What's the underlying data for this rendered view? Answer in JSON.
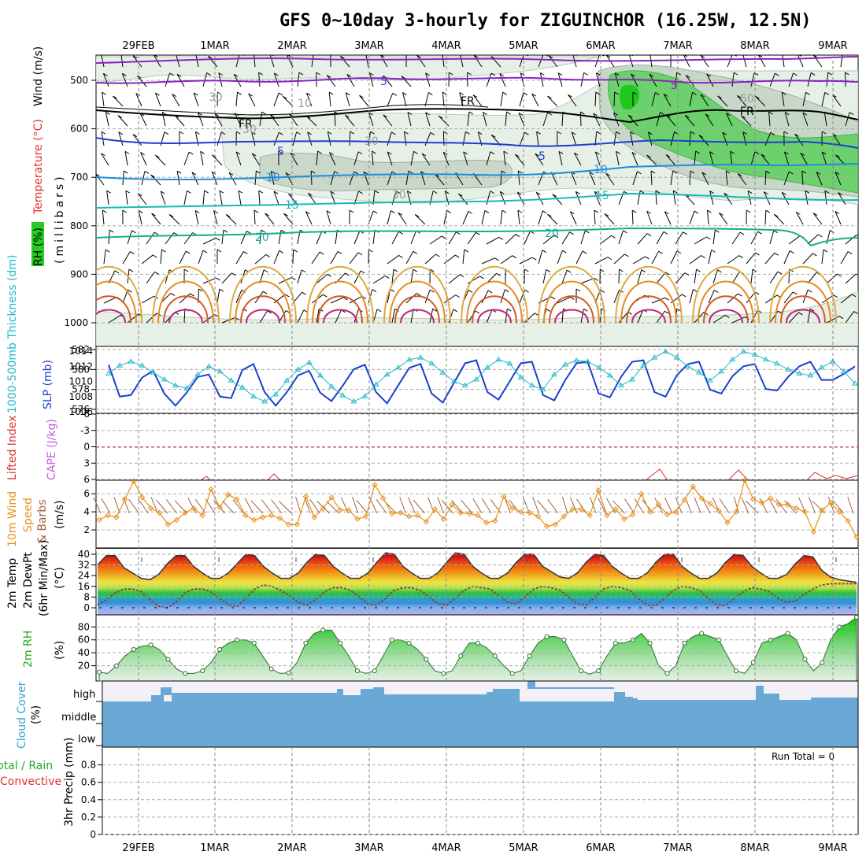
{
  "title": "GFS 0~10day 3-hourly for ZIGUINCHOR (16.25W, 12.5N)",
  "dates": [
    "29FEB",
    "1MAR",
    "2MAR",
    "3MAR",
    "4MAR",
    "5MAR",
    "6MAR",
    "7MAR",
    "8MAR",
    "9MAR"
  ],
  "colors": {
    "grid": "#aaaaaa",
    "slp": "#1a3fd0",
    "thickness": "#20b8c8",
    "wind10": "#e8901a",
    "lifted": "#e03030",
    "rh_fill": "#22cc22",
    "cloud": "#6aa8d6",
    "dewpt": "#8b4a2a"
  },
  "panels": {
    "upper": {
      "labels": {
        "wind": "Wind (m/s)",
        "temperature": "Temperature (°C)",
        "rh": "RH (%)",
        "pressure": "(millibars)"
      },
      "yticks": [
        "500",
        "600",
        "700",
        "800",
        "900",
        "1000"
      ],
      "contour_labels": [
        {
          "text": "5",
          "color": "#8a22c8"
        },
        {
          "text": "5",
          "color": "#8a22c8"
        },
        {
          "text": "FR",
          "color": "#000000"
        },
        {
          "text": "FR",
          "color": "#000000"
        },
        {
          "text": "FR",
          "color": "#000000"
        },
        {
          "text": "5",
          "color": "#1a3fd0"
        },
        {
          "text": "5",
          "color": "#1a3fd0"
        },
        {
          "text": "10",
          "color": "#1a8fe0"
        },
        {
          "text": "10",
          "color": "#1a8fe0"
        },
        {
          "text": "15",
          "color": "#18b8b8"
        },
        {
          "text": "15",
          "color": "#18b8b8"
        },
        {
          "text": "20",
          "color": "#10b090"
        },
        {
          "text": "20",
          "color": "#10b090"
        },
        {
          "text": "30",
          "color": "#999999"
        },
        {
          "text": "30",
          "color": "#999999"
        },
        {
          "text": "30",
          "color": "#999999"
        },
        {
          "text": "30",
          "color": "#999999"
        },
        {
          "text": "50",
          "color": "#999999"
        },
        {
          "text": "10",
          "color": "#999999"
        }
      ]
    },
    "slp_thickness": {
      "labels": {
        "left": "1000-500mb Thickness (dm)",
        "right": "SLP (mb)"
      },
      "yticks_left": [
        "582",
        "580",
        "578",
        "576"
      ],
      "yticks_right": [
        "1014",
        "1012",
        "1010",
        "1008",
        "1006"
      ]
    },
    "cape": {
      "labels": {
        "lifted": "Lifted Index",
        "cape": "CAPE (J/kg)"
      },
      "yticks": [
        "-6",
        "-3",
        "0",
        "3",
        "6"
      ]
    },
    "wind10": {
      "labels": {
        "a": "10m Wind",
        "b": "Speed",
        "c": "& Barbs",
        "unit": "(m/s)"
      },
      "yticks": [
        "6",
        "4",
        "2"
      ]
    },
    "temp2m": {
      "labels": {
        "a": "2m Temp",
        "b": "2m DewPt",
        "c": "(6hr Min/Max)",
        "unit": "(°C)"
      },
      "yticks": [
        "40",
        "32",
        "24",
        "16",
        "8",
        "0"
      ]
    },
    "rh2m": {
      "labels": {
        "a": "2m RH",
        "unit": "(%)"
      },
      "yticks": [
        "80",
        "60",
        "40",
        "20"
      ]
    },
    "cloud": {
      "labels": {
        "a": "Cloud Cover",
        "unit": "(%)"
      },
      "levels": [
        "high",
        "middle",
        "low"
      ]
    },
    "precip": {
      "labels": {
        "a": "Total / Rain",
        "b": "Convective",
        "c": "3hr Precip (mm)"
      },
      "yticks": [
        "0.8",
        "0.6",
        "0.4",
        "0.2",
        "0"
      ],
      "run_total": "Run Total = 0"
    }
  },
  "chart_data": [
    {
      "type": "line",
      "title": "1000-500mb Thickness / SLP",
      "series": [
        {
          "name": "SLP (mb)",
          "values": [
            1012.2,
            1008.0,
            1008.2,
            1010.5,
            1011.4,
            1008.4,
            1006.8,
            1008.5,
            1010.6,
            1010.9,
            1008.0,
            1007.8,
            1011.5,
            1012.3,
            1008.6,
            1006.8,
            1008.6,
            1010.8,
            1011.4,
            1008.5,
            1007.4,
            1009.4,
            1011.6,
            1012.2,
            1008.6,
            1007.1,
            1009.5,
            1011.8,
            1012.3,
            1008.4,
            1007.2,
            1009.8,
            1012.4,
            1012.8,
            1008.6,
            1007.6,
            1010.0,
            1012.4,
            1012.6,
            1008.2,
            1007.5,
            1010.2,
            1012.4,
            1012.6,
            1008.4,
            1007.9,
            1010.6,
            1012.6,
            1012.8,
            1008.6,
            1008.0,
            1010.8,
            1012.3,
            1012.6,
            1008.9,
            1008.4,
            1010.7,
            1012.0,
            1012.3,
            1009.0,
            1008.8,
            1010.6,
            1012.0,
            1012.6,
            1010.2,
            1010.2,
            1011.0,
            1012.0
          ]
        },
        {
          "name": "Thickness (dm)",
          "values": [
            579.6,
            580.4,
            580.8,
            580.4,
            579.7,
            579.0,
            578.4,
            578.1,
            579.5,
            580.3,
            579.8,
            578.9,
            578.2,
            577.3,
            576.8,
            577.5,
            578.9,
            580.0,
            580.7,
            579.4,
            578.3,
            577.4,
            576.8,
            577.3,
            578.5,
            579.5,
            580.2,
            581.0,
            581.2,
            580.6,
            579.7,
            578.8,
            578.4,
            579.0,
            580.2,
            581.0,
            580.6,
            579.2,
            578.4,
            578.0,
            579.5,
            580.5,
            580.9,
            580.8,
            580.2,
            579.4,
            578.4,
            579.0,
            580.4,
            581.2,
            581.8,
            581.2,
            580.3,
            579.7,
            578.9,
            579.8,
            581.0,
            581.8,
            581.5,
            581.0,
            580.6,
            580.0,
            579.6,
            579.4,
            580.2,
            580.8,
            579.8,
            578.6
          ]
        }
      ]
    },
    {
      "type": "line",
      "title": "10m Wind Speed",
      "series": [
        {
          "name": "10m Wind Speed (m/s)",
          "values": [
            3.1,
            3.6,
            3.4,
            5.4,
            7.4,
            5.6,
            4.4,
            3.9,
            2.6,
            3.1,
            3.9,
            4.4,
            3.6,
            6.5,
            4.5,
            5.9,
            5.4,
            3.6,
            3.1,
            3.4,
            3.6,
            3.3,
            2.6,
            2.6,
            5.7,
            3.4,
            4.4,
            5.6,
            4.2,
            4.2,
            3.2,
            3.5,
            7.0,
            5.5,
            3.8,
            3.9,
            3.5,
            3.6,
            2.9,
            4.3,
            3.2,
            4.8,
            3.9,
            3.8,
            3.6,
            2.8,
            3.0,
            5.7,
            4.4,
            4.0,
            3.9,
            3.5,
            2.4,
            2.6,
            3.5,
            4.3,
            4.3,
            3.6,
            6.4,
            3.6,
            4.3,
            3.2,
            3.7,
            6.0,
            4.0,
            4.8,
            3.7,
            4.0,
            5.3,
            6.8,
            5.5,
            4.9,
            4.1,
            2.8,
            4.0,
            7.5,
            5.4,
            5.0,
            5.5,
            4.8,
            4.8,
            4.4,
            4.0,
            1.8,
            4.2,
            5.0,
            4.0,
            3.0,
            1.2
          ]
        }
      ]
    },
    {
      "type": "area",
      "title": "2m Temp",
      "series": [
        {
          "name": "2m Temp (°C)",
          "values": [
            32,
            39,
            39,
            30,
            26,
            22,
            21,
            25,
            33,
            39,
            39,
            31,
            26,
            22,
            22,
            26,
            33,
            40,
            39,
            31,
            26,
            22,
            22,
            26,
            34,
            40,
            39,
            31,
            26,
            22,
            22,
            26,
            34,
            41,
            40,
            31,
            26,
            22,
            22,
            26,
            34,
            41,
            40,
            31,
            26,
            22,
            22,
            26,
            34,
            40,
            40,
            31,
            27,
            23,
            22,
            26,
            34,
            40,
            39,
            31,
            26,
            22,
            22,
            26,
            34,
            40,
            40,
            31,
            26,
            22,
            22,
            26,
            34,
            40,
            39,
            31,
            26,
            22,
            22,
            25,
            33,
            39,
            38,
            28,
            23,
            21,
            20,
            19
          ]
        },
        {
          "name": "2m DewPt (°C)",
          "values": [
            2,
            6,
            11,
            14,
            14,
            12,
            6,
            1,
            0,
            4,
            11,
            14,
            14,
            12,
            7,
            2,
            1,
            7,
            14,
            17,
            16,
            13,
            9,
            4,
            2,
            6,
            12,
            15,
            15,
            13,
            8,
            3,
            2,
            7,
            13,
            15,
            15,
            13,
            8,
            3,
            2,
            7,
            13,
            16,
            15,
            14,
            9,
            4,
            3,
            8,
            14,
            16,
            15,
            13,
            8,
            3,
            2,
            8,
            14,
            16,
            15,
            13,
            7,
            2,
            2,
            7,
            13,
            16,
            15,
            13,
            7,
            2,
            2,
            7,
            12,
            15,
            14,
            12,
            7,
            4,
            5,
            10,
            14,
            17,
            18,
            18,
            18,
            18
          ]
        }
      ]
    },
    {
      "type": "area",
      "title": "2m RH",
      "series": [
        {
          "name": "2m RH (%)",
          "values": [
            10,
            8,
            20,
            35,
            45,
            50,
            52,
            45,
            30,
            15,
            8,
            8,
            12,
            25,
            45,
            55,
            60,
            60,
            55,
            35,
            15,
            8,
            9,
            25,
            55,
            70,
            75,
            75,
            55,
            35,
            12,
            8,
            12,
            35,
            60,
            60,
            55,
            45,
            30,
            12,
            8,
            12,
            35,
            55,
            55,
            48,
            35,
            20,
            8,
            12,
            35,
            55,
            65,
            65,
            60,
            35,
            12,
            7,
            12,
            35,
            55,
            55,
            60,
            70,
            55,
            20,
            8,
            20,
            55,
            65,
            70,
            65,
            60,
            35,
            12,
            8,
            25,
            55,
            60,
            65,
            70,
            60,
            30,
            12,
            25,
            60,
            80,
            85,
            95
          ]
        }
      ]
    }
  ]
}
